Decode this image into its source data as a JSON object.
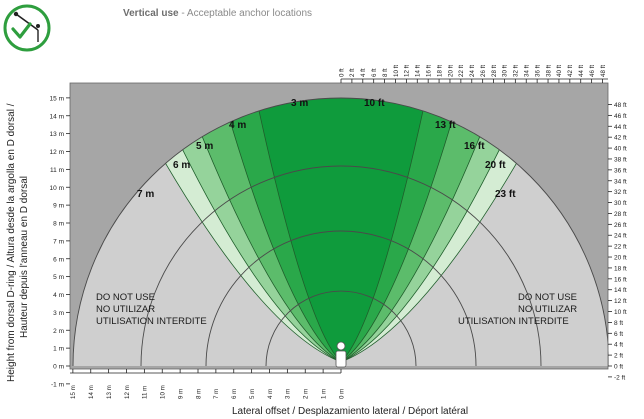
{
  "header": {
    "title_bold": "Vertical use",
    "title_rest": " - Acceptable anchor locations"
  },
  "badge": {
    "icon": "checkmark-anchor-icon",
    "color": "#2e9e3e"
  },
  "axes": {
    "left_label_line1": "Height from dorsal D-ring / Altura desde la argolla en D dorsal /",
    "left_label_line2": "Hauteur depuis l'anneau en D dorsal",
    "bottom_label": "Lateral offset / Desplazamiento lateral / Déport latéral",
    "left_ticks": [
      "15 m",
      "14 m",
      "13 m",
      "12 m",
      "11 m",
      "10 m",
      "9 m",
      "8 m",
      "7 m",
      "6 m",
      "5 m",
      "4 m",
      "3 m",
      "2 m",
      "1 m",
      "0 m",
      "-1 m"
    ],
    "right_ticks": [
      "48 ft",
      "46 ft",
      "44 ft",
      "42 ft",
      "40 ft",
      "38 ft",
      "36 ft",
      "34 ft",
      "32 ft",
      "30 ft",
      "28 ft",
      "26 ft",
      "24 ft",
      "22 ft",
      "20 ft",
      "18 ft",
      "16 ft",
      "14 ft",
      "12 ft",
      "10 ft",
      "8 ft",
      "6 ft",
      "4 ft",
      "2 ft",
      "0 ft",
      "-2 ft"
    ],
    "top_ticks": [
      "0 ft",
      "2 ft",
      "4 ft",
      "6 ft",
      "8 ft",
      "10 ft",
      "12 ft",
      "14 ft",
      "16 ft",
      "18 ft",
      "20 ft",
      "22 ft",
      "24 ft",
      "26 ft",
      "28 ft",
      "30 ft",
      "32 ft",
      "34 ft",
      "36 ft",
      "38 ft",
      "40 ft",
      "42 ft",
      "44 ft",
      "46 ft",
      "48 ft"
    ],
    "bottom_ticks": [
      "15 m",
      "14 m",
      "13 m",
      "12 m",
      "11 m",
      "10 m",
      "9 m",
      "8 m",
      "7 m",
      "6 m",
      "5 m",
      "4 m",
      "3 m",
      "2 m",
      "1 m",
      "0 m"
    ]
  },
  "zones": {
    "left_labels": [
      "3 m",
      "4 m",
      "5 m",
      "6 m",
      "7 m"
    ],
    "right_labels": [
      "10 ft",
      "13 ft",
      "16 ft",
      "20 ft",
      "23 ft"
    ],
    "colors": [
      "#0f9b3c",
      "#2aa84a",
      "#5cbc6b",
      "#95d39b",
      "#d4ecd3"
    ]
  },
  "warnings": {
    "left": [
      "DO NOT USE",
      "NO UTILIZAR",
      "UTILISATION INTERDITE"
    ],
    "right": [
      "DO NOT USE",
      "NO UTILIZAR",
      "UTILISATION INTERDITE"
    ]
  },
  "palette": {
    "grid_bg": "#d8d8d8",
    "do_not_use": "#a6a6a6"
  }
}
